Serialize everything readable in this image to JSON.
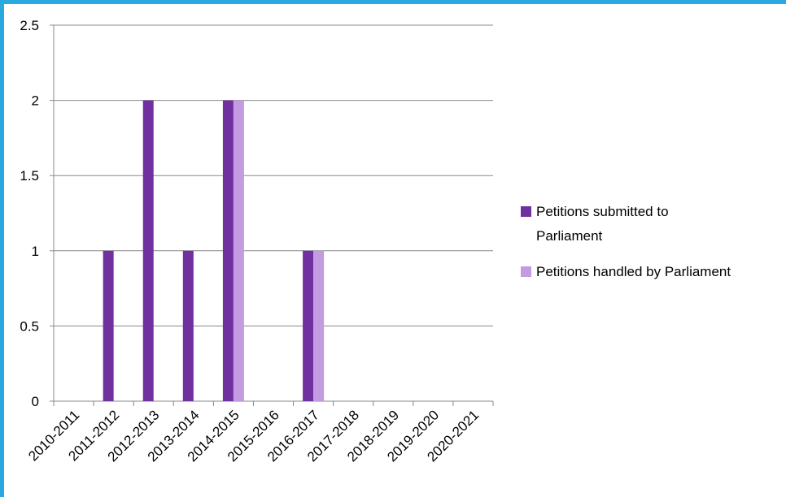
{
  "chart_data": {
    "type": "bar",
    "categories": [
      "2010-2011",
      "2011-2012",
      "2012-2013",
      "2013-2014",
      "2014-2015",
      "2015-2016",
      "2016-2017",
      "2017-2018",
      "2018-2019",
      "2019-2020",
      "2020-2021"
    ],
    "series": [
      {
        "name": "Petitions submitted to Parliament",
        "values": [
          0,
          1,
          2,
          1,
          2,
          0,
          1,
          0,
          0,
          0,
          0
        ]
      },
      {
        "name": "Petitions handled by Parliament",
        "values": [
          0,
          0,
          0,
          0,
          2,
          0,
          1,
          0,
          0,
          0,
          0
        ]
      }
    ],
    "ylim": [
      0,
      2.5
    ],
    "yticks": [
      "0",
      "0.5",
      "1",
      "1.5",
      "2",
      "2.5"
    ],
    "grid": true,
    "legend_position": "right",
    "title": "",
    "xlabel": "",
    "ylabel": ""
  },
  "colors": {
    "series": [
      "#7030a0",
      "#c39be0"
    ],
    "frame": "#2aa8e0",
    "grid": "#888888"
  },
  "legend": {
    "item0_line1": "Petitions submitted to",
    "item0_line2": "Parliament",
    "item1_line1": "Petitions handled by Parliament"
  }
}
